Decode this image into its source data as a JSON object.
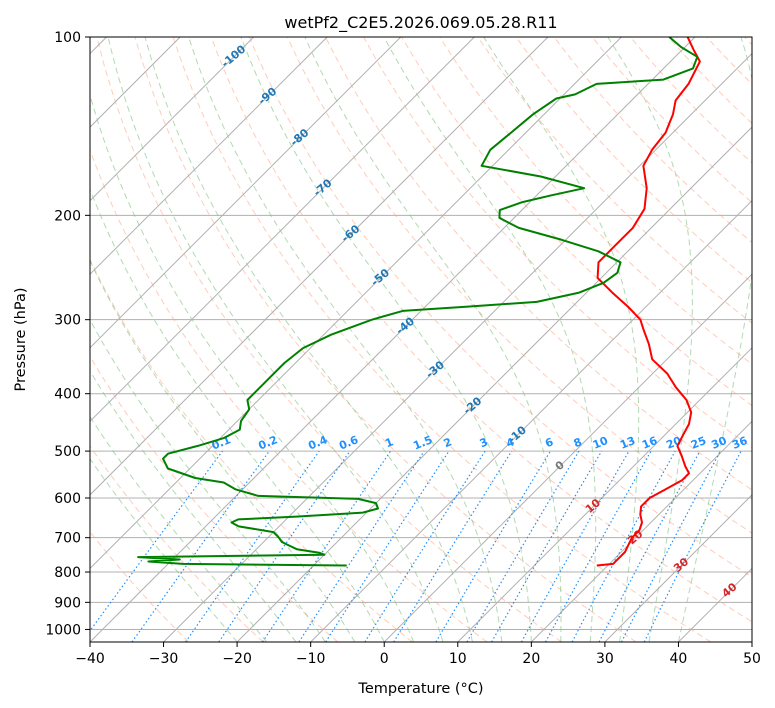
{
  "chart_data": {
    "type": "line",
    "title": "wetPf2_C2E5.2026.069.05.28.R11",
    "xlabel": "Temperature (°C)",
    "ylabel": "Pressure (hPa)",
    "xlim": [
      -40,
      50
    ],
    "ylim": [
      1050,
      100
    ],
    "y_scale": "log",
    "grid": true,
    "x_ticks": [
      -40,
      -30,
      -20,
      -10,
      0,
      10,
      20,
      30,
      40,
      50
    ],
    "x_tick_labels": [
      "−40",
      "−30",
      "−20",
      "−10",
      "0",
      "10",
      "20",
      "30",
      "40",
      "50"
    ],
    "y_ticks": [
      100,
      200,
      300,
      400,
      500,
      600,
      700,
      800,
      900,
      1000
    ],
    "y_tick_labels": [
      "100",
      "200",
      "300",
      "400",
      "500",
      "600",
      "700",
      "800",
      "900",
      "1000"
    ],
    "series": [
      {
        "role": "temperature",
        "color": "#ff0000",
        "points": [
          [
            780,
            18.5
          ],
          [
            775,
            20.5
          ],
          [
            770,
            20.5
          ],
          [
            760,
            20.5
          ],
          [
            740,
            20.5
          ],
          [
            720,
            20.0
          ],
          [
            700,
            19.5
          ],
          [
            680,
            19.5
          ],
          [
            660,
            18.8
          ],
          [
            640,
            17.5
          ],
          [
            620,
            16.5
          ],
          [
            600,
            16.5
          ],
          [
            580,
            17.5
          ],
          [
            560,
            18.5
          ],
          [
            545,
            18.5
          ],
          [
            530,
            17.0
          ],
          [
            510,
            15.2
          ],
          [
            490,
            13.2
          ],
          [
            470,
            12.5
          ],
          [
            450,
            11.8
          ],
          [
            430,
            10.5
          ],
          [
            410,
            8.2
          ],
          [
            390,
            5.0
          ],
          [
            370,
            2.0
          ],
          [
            350,
            -2.0
          ],
          [
            330,
            -4.5
          ],
          [
            310,
            -7.5
          ],
          [
            300,
            -9.0
          ],
          [
            285,
            -12.5
          ],
          [
            270,
            -16.5
          ],
          [
            255,
            -20.5
          ],
          [
            240,
            -22.5
          ],
          [
            225,
            -22.5
          ],
          [
            210,
            -22.5
          ],
          [
            195,
            -23.5
          ],
          [
            180,
            -26.0
          ],
          [
            165,
            -29.5
          ],
          [
            155,
            -30.5
          ],
          [
            145,
            -31.0
          ],
          [
            135,
            -32.5
          ],
          [
            128,
            -34.0
          ],
          [
            120,
            -34.5
          ],
          [
            110,
            -36.0
          ],
          [
            105,
            -38.5
          ],
          [
            100,
            -41.0
          ]
        ]
      },
      {
        "role": "dewpoint",
        "color": "#008000",
        "points": [
          [
            780,
            -15.5
          ],
          [
            775,
            -38.0
          ],
          [
            768,
            -43.0
          ],
          [
            762,
            -39.0
          ],
          [
            755,
            -45.0
          ],
          [
            748,
            -20.0
          ],
          [
            742,
            -21.0
          ],
          [
            732,
            -24.5
          ],
          [
            722,
            -26.0
          ],
          [
            712,
            -27.5
          ],
          [
            700,
            -28.5
          ],
          [
            685,
            -30.0
          ],
          [
            670,
            -35.5
          ],
          [
            660,
            -37.0
          ],
          [
            652,
            -36.5
          ],
          [
            645,
            -29.0
          ],
          [
            635,
            -20.5
          ],
          [
            625,
            -19.0
          ],
          [
            612,
            -20.0
          ],
          [
            602,
            -23.0
          ],
          [
            595,
            -37.0
          ],
          [
            580,
            -41.0
          ],
          [
            565,
            -43.5
          ],
          [
            555,
            -48.0
          ],
          [
            535,
            -53.0
          ],
          [
            515,
            -55.0
          ],
          [
            505,
            -55.0
          ],
          [
            490,
            -52.0
          ],
          [
            475,
            -49.5
          ],
          [
            460,
            -48.5
          ],
          [
            445,
            -49.5
          ],
          [
            425,
            -50.0
          ],
          [
            410,
            -51.5
          ],
          [
            400,
            -51.5
          ],
          [
            390,
            -51.5
          ],
          [
            375,
            -51.5
          ],
          [
            355,
            -51.5
          ],
          [
            335,
            -51.0
          ],
          [
            318,
            -49.0
          ],
          [
            300,
            -45.5
          ],
          [
            290,
            -42.5
          ],
          [
            285,
            -34.0
          ],
          [
            280,
            -25.5
          ],
          [
            270,
            -21.0
          ],
          [
            260,
            -19.0
          ],
          [
            250,
            -18.5
          ],
          [
            240,
            -19.5
          ],
          [
            230,
            -24.0
          ],
          [
            220,
            -30.5
          ],
          [
            210,
            -38.0
          ],
          [
            202,
            -42.0
          ],
          [
            196,
            -43.0
          ],
          [
            190,
            -41.0
          ],
          [
            185,
            -38.0
          ],
          [
            180,
            -34.5
          ],
          [
            172,
            -42.0
          ],
          [
            165,
            -51.5
          ],
          [
            155,
            -52.5
          ],
          [
            145,
            -52.0
          ],
          [
            135,
            -51.5
          ],
          [
            127,
            -50.5
          ],
          [
            125,
            -48.5
          ],
          [
            120,
            -47.0
          ],
          [
            118,
            -38.5
          ],
          [
            113,
            -36.0
          ],
          [
            108,
            -37.0
          ],
          [
            104,
            -40.5
          ],
          [
            100,
            -43.5
          ]
        ]
      }
    ],
    "isotherm_labels": [
      "-100",
      "-90",
      "-80",
      "-70",
      "-60",
      "-50",
      "-40",
      "-30",
      "-20",
      "-10",
      "0",
      "10",
      "20",
      "30",
      "40"
    ],
    "mixing_ratio_labels": [
      "0.1",
      "0.2",
      "0.4",
      "0.6",
      "1",
      "1.5",
      "2",
      "3",
      "4",
      "6",
      "8",
      "10",
      "13",
      "16",
      "20",
      "25",
      "30",
      "36"
    ],
    "colors": {
      "isotherm": "#b0b0b0",
      "dry_adiabat": "#ffa380",
      "moist_adiabat": "#7fbf7f",
      "mixing_ratio": "#1e90ff",
      "isotherm_label_cold": "#1f77b4",
      "isotherm_label_zero": "#777777",
      "isotherm_label_warm": "#d62728"
    }
  }
}
